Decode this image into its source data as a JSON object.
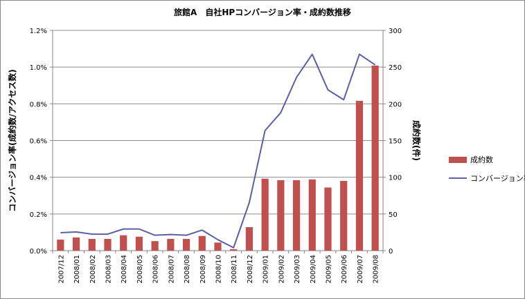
{
  "chart_data": {
    "type": "bar",
    "title": "旅館A　自社HPコンバージョン率・成約数推移",
    "categories": [
      "2007/12",
      "2008/01",
      "2008/02",
      "2008/03",
      "2008/04",
      "2008/05",
      "2008/06",
      "2008/07",
      "2008/08",
      "2008/09",
      "2008/10",
      "2008/11",
      "2008/12",
      "2009/01",
      "2009/02",
      "2009/03",
      "2009/04",
      "2009/05",
      "2009/06",
      "2009/07",
      "2009/08"
    ],
    "y_left": {
      "label": "コンバージョン率(成約数/アクセス数)",
      "ylim": [
        0,
        0.012
      ],
      "ticks": [
        "0.0%",
        "0.2%",
        "0.4%",
        "0.6%",
        "0.8%",
        "1.0%",
        "1.2%"
      ]
    },
    "y_right": {
      "label": "成約数(件)",
      "ylim": [
        0,
        300
      ],
      "ticks": [
        "0",
        "50",
        "100",
        "150",
        "200",
        "250",
        "300"
      ]
    },
    "series": [
      {
        "name": "成約数",
        "type": "bar",
        "axis": "right",
        "color": "#C0504D",
        "values": [
          15,
          18,
          16,
          16,
          21,
          19,
          13,
          16,
          16,
          20,
          11,
          2,
          32,
          98,
          96,
          96,
          97,
          86,
          95,
          204,
          252
        ]
      },
      {
        "name": "コンバージョン率",
        "type": "line",
        "axis": "left",
        "color": "#5B5EA6",
        "values": [
          0.00098,
          0.00102,
          0.0009,
          0.0009,
          0.00118,
          0.00118,
          0.00084,
          0.00088,
          0.00084,
          0.00112,
          0.0006,
          0.00016,
          0.00262,
          0.00654,
          0.00752,
          0.00944,
          0.0107,
          0.00876,
          0.00822,
          0.0107,
          0.01012
        ]
      }
    ],
    "grid": true,
    "legend": "right"
  }
}
